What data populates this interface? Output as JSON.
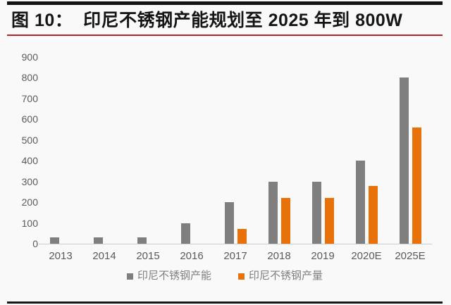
{
  "header": {
    "title": "图 10：  印尼不锈钢产能规划至 2025 年到 800W"
  },
  "colors": {
    "capacity_bar": "#7f7f7f",
    "output_bar": "#e8710a",
    "title_underline": "#b5232a",
    "axis_line": "#cccccc",
    "tick_label": "#5a5a5a"
  },
  "chart_data": {
    "type": "bar",
    "title": "印尼不锈钢产能规划至 2025 年到 800W",
    "categories": [
      "2013",
      "2014",
      "2015",
      "2016",
      "2017",
      "2018",
      "2019",
      "2020E",
      "2025E"
    ],
    "series": [
      {
        "name": "印尼不锈钢产能",
        "color": "#7f7f7f",
        "values": [
          30,
          30,
          30,
          100,
          200,
          300,
          300,
          400,
          800
        ]
      },
      {
        "name": "印尼不锈钢产量",
        "color": "#e8710a",
        "values": [
          0,
          0,
          0,
          0,
          70,
          220,
          220,
          280,
          560
        ]
      }
    ],
    "xlabel": "",
    "ylabel": "",
    "ylim": [
      0,
      900
    ],
    "yticks": [
      0,
      100,
      200,
      300,
      400,
      500,
      600,
      700,
      800,
      900
    ],
    "grid": false,
    "legend_position": "bottom-center"
  }
}
